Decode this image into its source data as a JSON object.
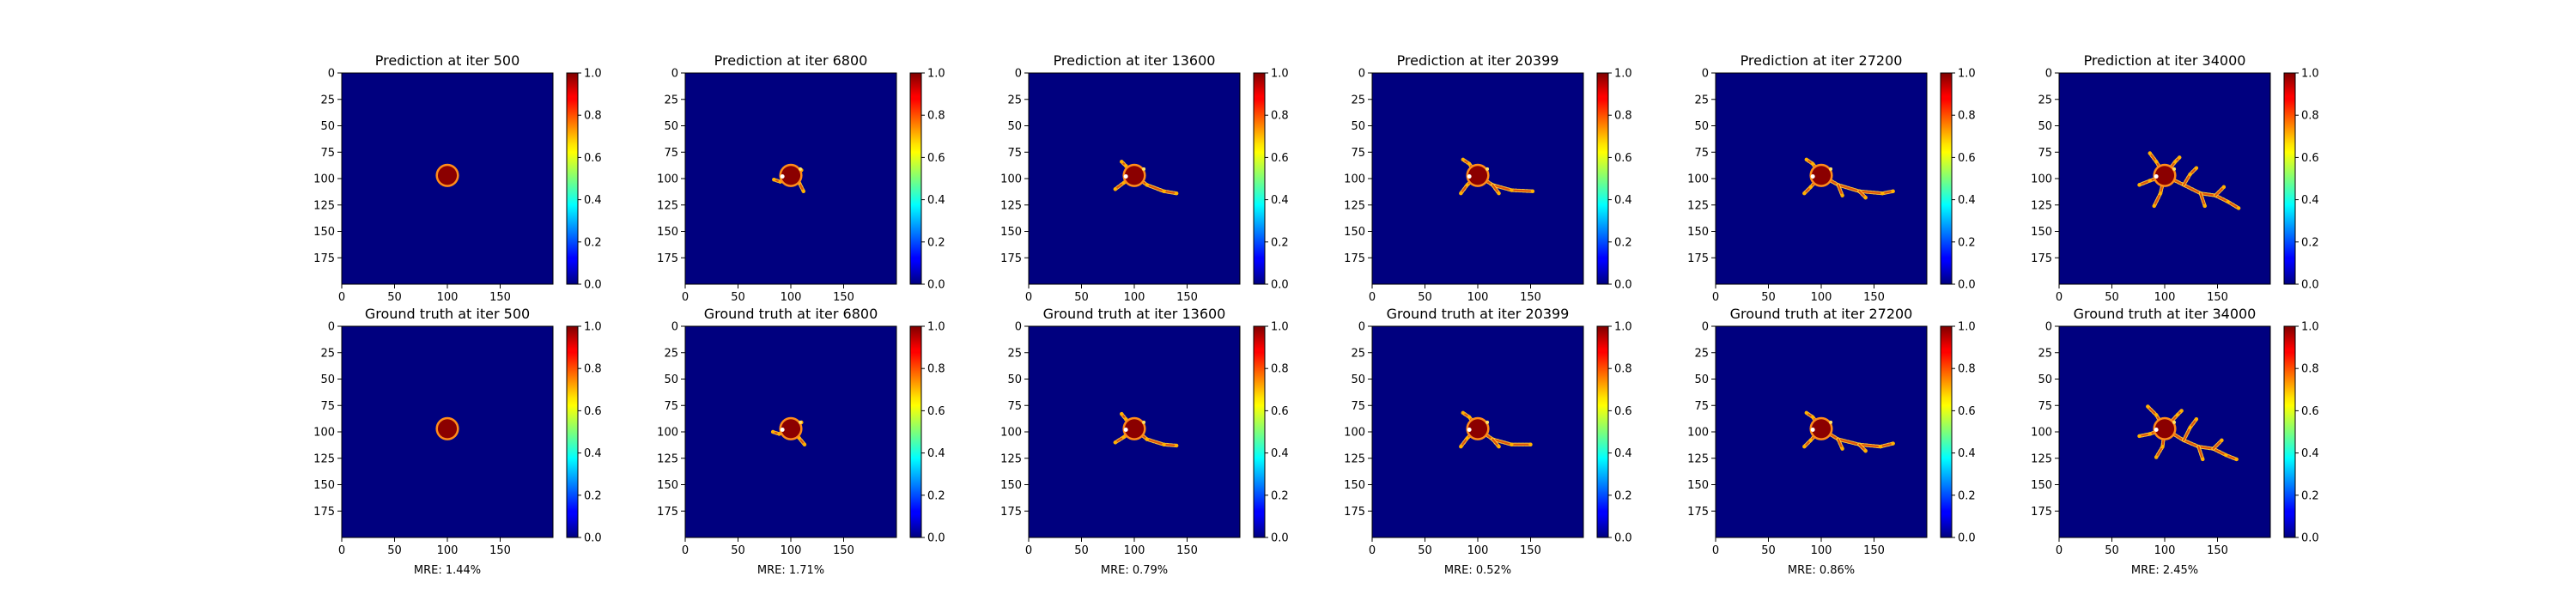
{
  "chart_data": {
    "type": "heatmap",
    "colormap": "jet",
    "x_range": [
      0,
      200
    ],
    "y_range": [
      0,
      200
    ],
    "x_ticks": [
      0,
      50,
      100,
      150
    ],
    "y_ticks": [
      0,
      25,
      50,
      75,
      100,
      125,
      150,
      175
    ],
    "colorbar": {
      "range": [
        0,
        1
      ],
      "ticks": [
        "0.0",
        "0.2",
        "0.4",
        "0.6",
        "0.8",
        "1.0"
      ]
    },
    "background_value": 0.0,
    "core": {
      "center": [
        100,
        97
      ],
      "radius": 9,
      "value": 1.0
    },
    "panels": [
      {
        "title": "Prediction at iter 500",
        "row": "prediction",
        "iter": 500,
        "growth": 0,
        "branches": []
      },
      {
        "title": "Prediction at iter 6800",
        "row": "prediction",
        "iter": 6800,
        "growth": 1,
        "branches": [
          [
            [
              100,
              97
            ],
            [
              108,
              104
            ],
            [
              112,
              112
            ]
          ],
          [
            [
              100,
              97
            ],
            [
              90,
              103
            ],
            [
              84,
              101
            ]
          ],
          [
            [
              100,
              97
            ],
            [
              110,
              92
            ]
          ]
        ]
      },
      {
        "title": "Prediction at iter 13600",
        "row": "prediction",
        "iter": 13600,
        "growth": 2,
        "branches": [
          [
            [
              100,
              97
            ],
            [
              112,
              106
            ],
            [
              128,
              112
            ],
            [
              140,
              114
            ]
          ],
          [
            [
              100,
              97
            ],
            [
              92,
              88
            ],
            [
              88,
              84
            ]
          ],
          [
            [
              100,
              97
            ],
            [
              90,
              104
            ],
            [
              82,
              110
            ]
          ]
        ]
      },
      {
        "title": "Prediction at iter 20399",
        "row": "prediction",
        "iter": 20399,
        "growth": 3,
        "branches": [
          [
            [
              100,
              97
            ],
            [
              114,
              106
            ],
            [
              132,
              111
            ],
            [
              152,
              112
            ]
          ],
          [
            [
              100,
              97
            ],
            [
              92,
              86
            ],
            [
              86,
              82
            ]
          ],
          [
            [
              100,
              97
            ],
            [
              90,
              106
            ],
            [
              84,
              114
            ]
          ],
          [
            [
              114,
              106
            ],
            [
              120,
              114
            ]
          ]
        ]
      },
      {
        "title": "Prediction at iter 27200",
        "row": "prediction",
        "iter": 27200,
        "growth": 4,
        "branches": [
          [
            [
              100,
              97
            ],
            [
              116,
              106
            ],
            [
              136,
              112
            ],
            [
              158,
              114
            ],
            [
              168,
              112
            ]
          ],
          [
            [
              100,
              97
            ],
            [
              92,
              86
            ],
            [
              86,
              82
            ]
          ],
          [
            [
              100,
              97
            ],
            [
              90,
              108
            ],
            [
              84,
              114
            ]
          ],
          [
            [
              136,
              112
            ],
            [
              142,
              118
            ]
          ],
          [
            [
              116,
              106
            ],
            [
              120,
              116
            ]
          ]
        ]
      },
      {
        "title": "Prediction at iter 34000",
        "row": "prediction",
        "iter": 34000,
        "growth": 6,
        "branches": [
          [
            [
              100,
              97
            ],
            [
              118,
              106
            ],
            [
              134,
              114
            ],
            [
              148,
              116
            ],
            [
              160,
              122
            ],
            [
              170,
              128
            ]
          ],
          [
            [
              100,
              97
            ],
            [
              92,
              84
            ],
            [
              86,
              76
            ]
          ],
          [
            [
              100,
              97
            ],
            [
              86,
              102
            ],
            [
              76,
              106
            ]
          ],
          [
            [
              100,
              97
            ],
            [
              96,
              114
            ],
            [
              90,
              126
            ]
          ],
          [
            [
              118,
              106
            ],
            [
              124,
              96
            ],
            [
              130,
              90
            ]
          ],
          [
            [
              134,
              114
            ],
            [
              138,
              126
            ]
          ],
          [
            [
              148,
              116
            ],
            [
              156,
              108
            ]
          ],
          [
            [
              100,
              97
            ],
            [
              110,
              84
            ],
            [
              114,
              80
            ]
          ]
        ]
      },
      {
        "title": "Ground truth at iter 500",
        "row": "ground_truth",
        "iter": 500,
        "mre": "MRE: 1.44%",
        "growth": 0,
        "branches": []
      },
      {
        "title": "Ground truth at iter 6800",
        "row": "ground_truth",
        "iter": 6800,
        "mre": "MRE: 1.71%",
        "growth": 1,
        "branches": [
          [
            [
              100,
              97
            ],
            [
              108,
              106
            ],
            [
              113,
              112
            ]
          ],
          [
            [
              100,
              97
            ],
            [
              89,
              102
            ],
            [
              83,
              100
            ]
          ],
          [
            [
              100,
              97
            ],
            [
              110,
              91
            ]
          ]
        ]
      },
      {
        "title": "Ground truth at iter 13600",
        "row": "ground_truth",
        "iter": 13600,
        "mre": "MRE: 0.79%",
        "growth": 2,
        "branches": [
          [
            [
              100,
              97
            ],
            [
              112,
              107
            ],
            [
              128,
              112
            ],
            [
              140,
              113
            ]
          ],
          [
            [
              100,
              97
            ],
            [
              92,
              88
            ],
            [
              88,
              83
            ]
          ],
          [
            [
              100,
              97
            ],
            [
              90,
              105
            ],
            [
              82,
              110
            ]
          ]
        ]
      },
      {
        "title": "Ground truth at iter 20399",
        "row": "ground_truth",
        "iter": 20399,
        "mre": "MRE: 0.52%",
        "growth": 3,
        "branches": [
          [
            [
              100,
              97
            ],
            [
              114,
              107
            ],
            [
              132,
              112
            ],
            [
              150,
              112
            ]
          ],
          [
            [
              100,
              97
            ],
            [
              92,
              86
            ],
            [
              86,
              82
            ]
          ],
          [
            [
              100,
              97
            ],
            [
              90,
              106
            ],
            [
              84,
              114
            ]
          ],
          [
            [
              114,
              107
            ],
            [
              120,
              114
            ]
          ]
        ]
      },
      {
        "title": "Ground truth at iter 27200",
        "row": "ground_truth",
        "iter": 27200,
        "mre": "MRE: 0.86%",
        "growth": 4,
        "branches": [
          [
            [
              100,
              97
            ],
            [
              116,
              107
            ],
            [
              136,
              112
            ],
            [
              156,
              114
            ],
            [
              168,
              111
            ]
          ],
          [
            [
              100,
              97
            ],
            [
              92,
              86
            ],
            [
              86,
              82
            ]
          ],
          [
            [
              100,
              97
            ],
            [
              90,
              108
            ],
            [
              84,
              114
            ]
          ],
          [
            [
              136,
              112
            ],
            [
              142,
              118
            ]
          ],
          [
            [
              116,
              107
            ],
            [
              120,
              116
            ]
          ]
        ]
      },
      {
        "title": "Ground truth at iter 34000",
        "row": "ground_truth",
        "iter": 34000,
        "mre": "MRE: 2.45%",
        "growth": 6,
        "branches": [
          [
            [
              100,
              97
            ],
            [
              118,
              108
            ],
            [
              132,
              114
            ],
            [
              146,
              116
            ],
            [
              158,
              122
            ],
            [
              168,
              126
            ]
          ],
          [
            [
              100,
              97
            ],
            [
              92,
              84
            ],
            [
              84,
              76
            ]
          ],
          [
            [
              100,
              97
            ],
            [
              86,
              102
            ],
            [
              76,
              104
            ]
          ],
          [
            [
              100,
              97
            ],
            [
              98,
              114
            ],
            [
              92,
              124
            ]
          ],
          [
            [
              118,
              108
            ],
            [
              124,
              96
            ],
            [
              130,
              88
            ]
          ],
          [
            [
              132,
              114
            ],
            [
              136,
              126
            ]
          ],
          [
            [
              146,
              116
            ],
            [
              154,
              108
            ]
          ],
          [
            [
              100,
              97
            ],
            [
              112,
              84
            ],
            [
              116,
              80
            ]
          ]
        ]
      }
    ]
  }
}
